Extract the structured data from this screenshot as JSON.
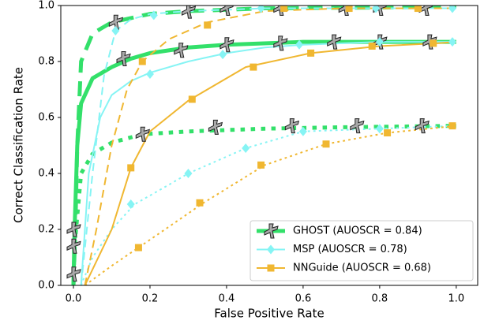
{
  "chart_data": {
    "type": "line",
    "xlabel": "False Positive Rate",
    "ylabel": "Correct Classification Rate",
    "xlim": [
      -0.033,
      1.056
    ],
    "ylim": [
      0,
      1
    ],
    "xticks": [
      {
        "value": 0,
        "label": "0.0"
      },
      0.2,
      0.4,
      0.6,
      0.8,
      {
        "value": 1,
        "label": "1.0"
      }
    ],
    "yticks": [
      {
        "value": 0,
        "label": "0.0"
      },
      0.2,
      0.4,
      0.6,
      0.8,
      {
        "value": 1,
        "label": "1.0"
      }
    ],
    "grid": false,
    "legend": "lower right",
    "series": [
      {
        "name": "GHOST (AUOSCR = 0.84)",
        "color": "#33e06a",
        "marker": "figure",
        "width": 5,
        "lines": [
          {
            "style": "solid",
            "x": [
              0,
              0.003,
              0.01,
              0.02,
              0.05,
              0.1,
              0.15,
              0.2,
              0.3,
              0.4,
              0.6,
              0.8,
              1.0
            ],
            "values": [
              0,
              0.2,
              0.5,
              0.65,
              0.74,
              0.78,
              0.81,
              0.83,
              0.85,
              0.86,
              0.87,
              0.87,
              0.87
            ],
            "marker_x": [
              0,
              0.13,
              0.28,
              0.4,
              0.54,
              0.68,
              0.8,
              0.93
            ],
            "marker_values": [
              0.14,
              0.81,
              0.84,
              0.86,
              0.865,
              0.87,
              0.87,
              0.87
            ]
          },
          {
            "style": "dashed",
            "x": [
              0,
              0.005,
              0.01,
              0.02,
              0.05,
              0.1,
              0.2,
              0.3,
              0.5,
              1.0
            ],
            "values": [
              0,
              0.2,
              0.5,
              0.8,
              0.9,
              0.94,
              0.97,
              0.98,
              0.99,
              0.995
            ],
            "marker_x": [
              0,
              0.11,
              0.3,
              0.4,
              0.54,
              0.71,
              0.8,
              0.92
            ],
            "marker_values": [
              0.2,
              0.94,
              0.98,
              0.99,
              0.99,
              0.99,
              0.99,
              0.99
            ]
          },
          {
            "style": "dotted",
            "x": [
              0,
              0.003,
              0.02,
              0.05,
              0.1,
              0.18,
              0.3,
              0.5,
              0.7,
              1.0
            ],
            "values": [
              0,
              0.14,
              0.4,
              0.47,
              0.51,
              0.54,
              0.55,
              0.56,
              0.565,
              0.57
            ],
            "marker_x": [
              0,
              0.18,
              0.37,
              0.57,
              0.74,
              0.91
            ],
            "marker_values": [
              0.04,
              0.54,
              0.565,
              0.57,
              0.57,
              0.57
            ]
          }
        ]
      },
      {
        "name": "MSP (AUOSCR = 0.78)",
        "color": "#86f4f4",
        "marker": "diamond",
        "width": 2,
        "lines": [
          {
            "style": "solid",
            "x": [
              0.02,
              0.04,
              0.07,
              0.1,
              0.15,
              0.2,
              0.3,
              0.4,
              0.5,
              0.6,
              0.8,
              1.0
            ],
            "values": [
              0,
              0.4,
              0.6,
              0.68,
              0.73,
              0.76,
              0.8,
              0.83,
              0.85,
              0.86,
              0.87,
              0.87
            ],
            "marker_x": [
              0.2,
              0.39,
              0.59,
              0.8,
              0.99
            ],
            "marker_values": [
              0.755,
              0.825,
              0.86,
              0.87,
              0.87
            ]
          },
          {
            "style": "dashed",
            "x": [
              0.02,
              0.05,
              0.08,
              0.11,
              0.15,
              0.2,
              0.3,
              0.5,
              0.7,
              1.0
            ],
            "values": [
              0,
              0.4,
              0.75,
              0.91,
              0.95,
              0.97,
              0.98,
              0.99,
              0.99,
              0.99
            ],
            "marker_x": [
              0.11,
              0.21,
              0.49,
              0.79,
              0.99
            ],
            "marker_values": [
              0.91,
              0.965,
              0.99,
              0.99,
              0.99
            ]
          },
          {
            "style": "dotted",
            "x": [
              0.02,
              0.05,
              0.1,
              0.16,
              0.25,
              0.3,
              0.45,
              0.6,
              0.8,
              1.0
            ],
            "values": [
              0,
              0.1,
              0.2,
              0.29,
              0.36,
              0.4,
              0.49,
              0.55,
              0.56,
              0.57
            ],
            "marker_x": [
              0.15,
              0.3,
              0.45,
              0.6,
              0.8
            ],
            "marker_values": [
              0.29,
              0.4,
              0.49,
              0.55,
              0.56
            ]
          }
        ]
      },
      {
        "name": "NNGuide (AUOSCR = 0.68)",
        "color": "#f0b731",
        "marker": "square",
        "width": 2,
        "lines": [
          {
            "style": "solid",
            "x": [
              0.03,
              0.1,
              0.15,
              0.2,
              0.3,
              0.45,
              0.62,
              0.8,
              0.95,
              1.0
            ],
            "values": [
              0,
              0.2,
              0.42,
              0.55,
              0.66,
              0.78,
              0.83,
              0.855,
              0.865,
              0.87
            ],
            "marker_x": [
              0.15,
              0.31,
              0.47,
              0.62,
              0.78,
              0.94
            ],
            "marker_values": [
              0.42,
              0.665,
              0.78,
              0.83,
              0.855,
              0.865
            ]
          },
          {
            "style": "dashed",
            "x": [
              0.03,
              0.06,
              0.1,
              0.14,
              0.18,
              0.25,
              0.35,
              0.5,
              0.7,
              1.0
            ],
            "values": [
              0,
              0.2,
              0.5,
              0.7,
              0.8,
              0.88,
              0.94,
              0.98,
              0.99,
              0.99
            ],
            "marker_x": [
              0.18,
              0.35,
              0.55,
              0.72,
              0.9
            ],
            "marker_values": [
              0.8,
              0.93,
              0.99,
              0.99,
              0.99
            ]
          },
          {
            "style": "dotted",
            "x": [
              0.03,
              0.1,
              0.17,
              0.25,
              0.34,
              0.5,
              0.66,
              0.82,
              1.0
            ],
            "values": [
              0,
              0.07,
              0.135,
              0.21,
              0.295,
              0.43,
              0.505,
              0.545,
              0.57
            ],
            "marker_x": [
              0.17,
              0.33,
              0.49,
              0.66,
              0.82,
              0.99
            ],
            "marker_values": [
              0.135,
              0.295,
              0.43,
              0.505,
              0.545,
              0.57
            ]
          }
        ]
      }
    ]
  }
}
